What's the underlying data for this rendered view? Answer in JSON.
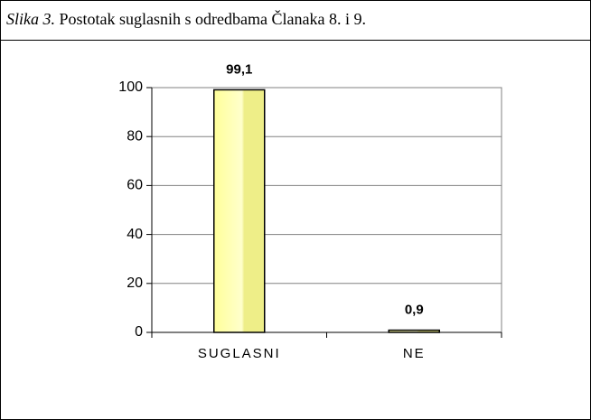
{
  "chart_data": {
    "type": "bar",
    "figure_label": "Slika 3.",
    "title": "Postotak suglasnih s odredbama Članaka 8. i 9.",
    "categories": [
      "SUGLASNI",
      "NE"
    ],
    "values": [
      99.1,
      0.9
    ],
    "value_labels": [
      "99,1",
      "0,9"
    ],
    "color": "#ffff99",
    "ylim": [
      0,
      100
    ],
    "yticks": [
      0,
      20,
      40,
      60,
      80,
      100
    ],
    "grid": true
  }
}
